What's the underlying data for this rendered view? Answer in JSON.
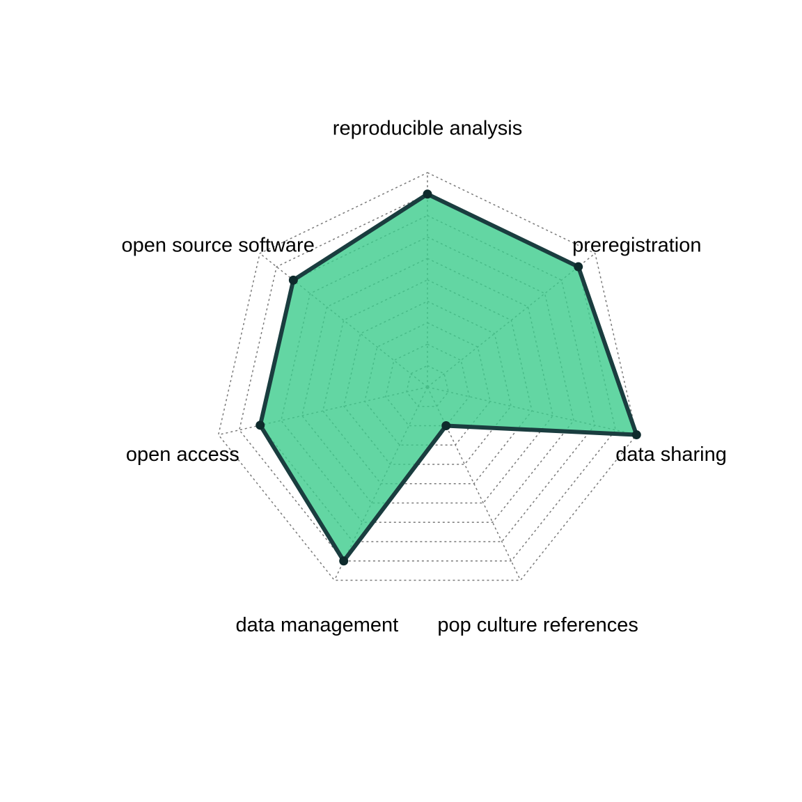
{
  "chart_data": {
    "type": "radar",
    "axes": [
      "reproducible analysis",
      "preregistration",
      "data sharing",
      "pop culture references",
      "data management",
      "open access",
      "open source software"
    ],
    "series": [
      {
        "values": [
          0.9,
          0.9,
          1.0,
          0.2,
          0.9,
          0.8,
          0.8
        ]
      }
    ],
    "rlim": [
      0,
      1
    ],
    "grid_levels": 10,
    "grid": true,
    "legend": "none",
    "colors": {
      "fill": "#3ccc8c",
      "fill_opacity": 0.8,
      "line": "#1a3d3f",
      "point": "#0e2a2c",
      "grid": "#7a7a7a"
    }
  }
}
